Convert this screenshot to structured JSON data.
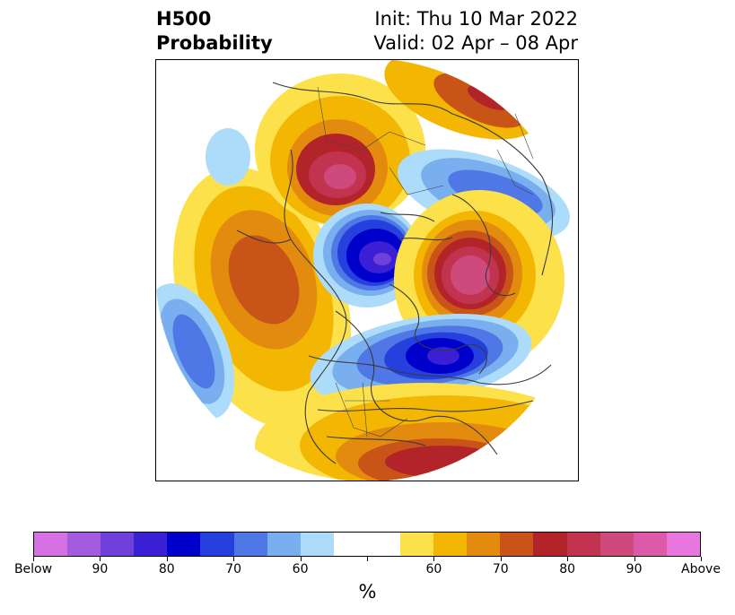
{
  "header": {
    "variable_line1": "H500",
    "variable_line2": "Probability",
    "init": "Init: Thu 10 Mar 2022",
    "valid": "Valid: 02 Apr – 08 Apr"
  },
  "map": {
    "projection": "north-polar-stereographic",
    "region": "Northern Hemisphere"
  },
  "colorbar": {
    "unit": "%",
    "colors": [
      "#d671e3",
      "#a45be0",
      "#7040da",
      "#3a1fd5",
      "#0000cd",
      "#2540dc",
      "#4f78e6",
      "#79afef",
      "#addcfa",
      "#ffffff",
      "#ffffff",
      "#fde14b",
      "#f3b703",
      "#e38b0f",
      "#c85418",
      "#b3242a",
      "#c23350",
      "#cf4a7c",
      "#dd5aa8",
      "#e976de"
    ],
    "tick_labels": [
      "Below",
      "90",
      "80",
      "70",
      "60",
      "",
      "60",
      "70",
      "80",
      "90",
      "Above"
    ]
  }
}
